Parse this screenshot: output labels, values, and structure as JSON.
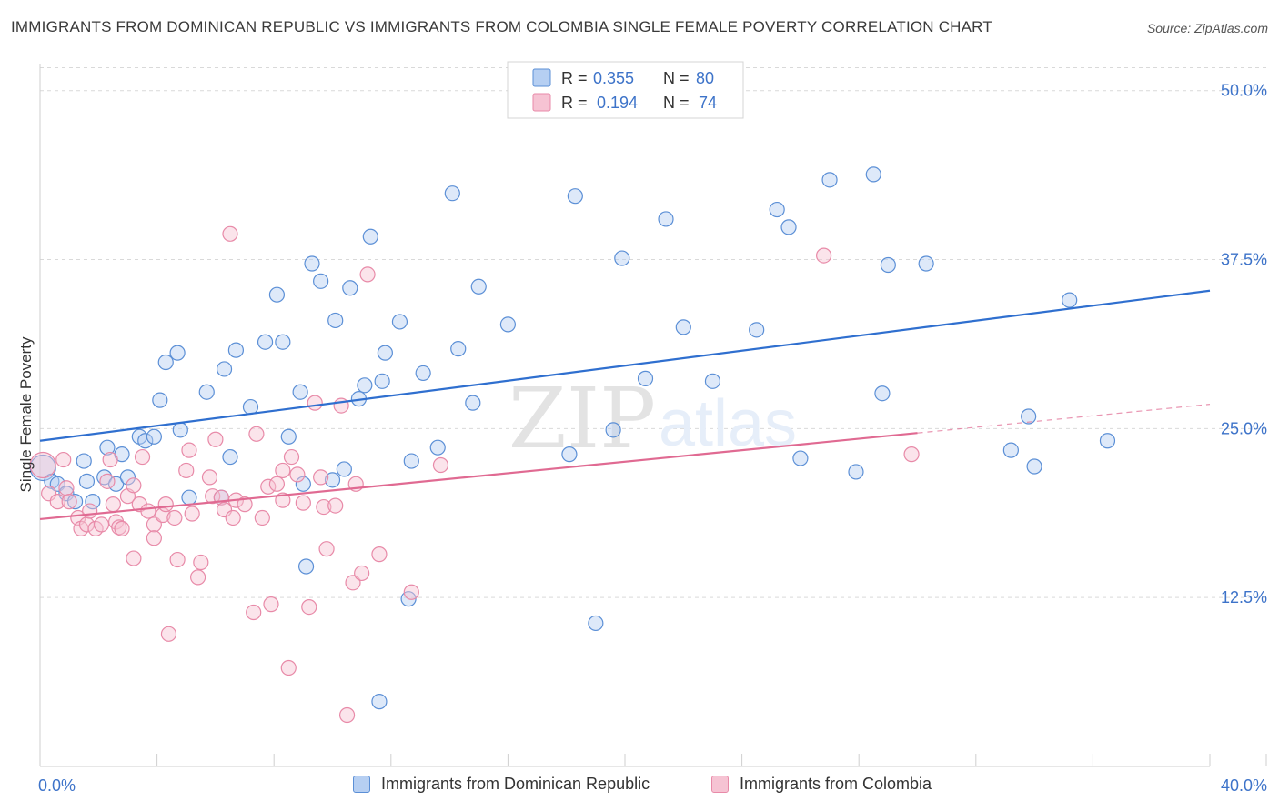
{
  "title": "IMMIGRANTS FROM DOMINICAN REPUBLIC VS IMMIGRANTS FROM COLOMBIA SINGLE FEMALE POVERTY CORRELATION CHART",
  "source": "Source: ZipAtlas.com",
  "watermark": {
    "zip": "ZIP",
    "atlas": "atlas"
  },
  "colors": {
    "blue": "#5b8fd6",
    "blue_fill": "#b6cff2",
    "blue_line": "#2f6fcf",
    "pink": "#e88aa8",
    "pink_fill": "#f6c3d3",
    "pink_line": "#e06a92",
    "axis_label": "#3d73c9",
    "grid": "#d9d9d9"
  },
  "legend_top": {
    "rows": [
      {
        "r_label": "R = ",
        "r_value": "0.355",
        "n_label": "N = ",
        "n_value": "80"
      },
      {
        "r_label": "R = ",
        "r_value": "0.194",
        "n_label": "N = ",
        "n_value": "74"
      }
    ]
  },
  "legend_bottom": {
    "blue_label": "Immigrants from Dominican Republic",
    "pink_label": "Immigrants from Colombia"
  },
  "chart_data": {
    "type": "scatter",
    "title": "IMMIGRANTS FROM DOMINICAN REPUBLIC VS IMMIGRANTS FROM COLOMBIA SINGLE FEMALE POVERTY CORRELATION CHART",
    "xlabel": "",
    "ylabel": "Single Female Poverty",
    "xlim": [
      0,
      40
    ],
    "ylim": [
      0,
      52
    ],
    "x_tick_labels": [
      "0.0%",
      "40.0%"
    ],
    "y_ticks": [
      12.5,
      25.0,
      37.5,
      50.0
    ],
    "y_tick_labels": [
      "12.5%",
      "25.0%",
      "37.5%",
      "50.0%"
    ],
    "x_minor_ticks": [
      0,
      4,
      8,
      12,
      16,
      20,
      24,
      28,
      32,
      36,
      40
    ],
    "series": [
      {
        "name": "Immigrants from Dominican Republic",
        "color": "blue",
        "R": 0.355,
        "N": 80,
        "trend": {
          "x": [
            0,
            40
          ],
          "y": [
            24.1,
            35.2
          ],
          "dashed_from": null
        },
        "points": [
          [
            0.1,
            22.1
          ],
          [
            0.4,
            21.1
          ],
          [
            0.6,
            20.9
          ],
          [
            0.9,
            20.2
          ],
          [
            1.2,
            19.6
          ],
          [
            1.5,
            22.6
          ],
          [
            1.6,
            21.1
          ],
          [
            1.8,
            19.6
          ],
          [
            2.2,
            21.4
          ],
          [
            2.3,
            23.6
          ],
          [
            2.6,
            20.9
          ],
          [
            2.8,
            23.1
          ],
          [
            3.0,
            21.4
          ],
          [
            3.4,
            24.4
          ],
          [
            3.6,
            24.1
          ],
          [
            3.9,
            24.4
          ],
          [
            4.1,
            27.1
          ],
          [
            4.3,
            29.9
          ],
          [
            4.7,
            30.6
          ],
          [
            4.8,
            24.9
          ],
          [
            5.1,
            19.9
          ],
          [
            5.7,
            27.7
          ],
          [
            6.2,
            19.9
          ],
          [
            6.3,
            29.4
          ],
          [
            6.5,
            22.9
          ],
          [
            6.7,
            30.8
          ],
          [
            7.2,
            26.6
          ],
          [
            7.7,
            31.4
          ],
          [
            8.1,
            34.9
          ],
          [
            8.3,
            31.4
          ],
          [
            8.5,
            24.4
          ],
          [
            8.9,
            27.7
          ],
          [
            9.0,
            20.9
          ],
          [
            9.3,
            37.2
          ],
          [
            9.6,
            35.9
          ],
          [
            10.0,
            21.2
          ],
          [
            10.1,
            33.0
          ],
          [
            10.4,
            22.0
          ],
          [
            10.6,
            35.4
          ],
          [
            10.9,
            27.2
          ],
          [
            11.1,
            28.2
          ],
          [
            11.3,
            39.2
          ],
          [
            11.7,
            28.5
          ],
          [
            11.8,
            30.6
          ],
          [
            12.3,
            32.9
          ],
          [
            12.6,
            12.4
          ],
          [
            12.7,
            22.6
          ],
          [
            13.1,
            29.1
          ],
          [
            13.6,
            23.6
          ],
          [
            14.1,
            42.4
          ],
          [
            14.3,
            30.9
          ],
          [
            14.8,
            26.9
          ],
          [
            15.0,
            35.5
          ],
          [
            16.0,
            32.7
          ],
          [
            18.1,
            23.1
          ],
          [
            18.3,
            42.2
          ],
          [
            19.0,
            10.6
          ],
          [
            19.6,
            24.9
          ],
          [
            19.9,
            37.6
          ],
          [
            20.7,
            28.7
          ],
          [
            21.4,
            40.5
          ],
          [
            22.0,
            32.5
          ],
          [
            23.0,
            28.5
          ],
          [
            24.5,
            32.3
          ],
          [
            25.2,
            41.2
          ],
          [
            25.6,
            39.9
          ],
          [
            26.0,
            22.8
          ],
          [
            27.0,
            43.4
          ],
          [
            27.9,
            21.8
          ],
          [
            28.5,
            43.8
          ],
          [
            28.8,
            27.6
          ],
          [
            29.0,
            37.1
          ],
          [
            30.3,
            37.2
          ],
          [
            33.2,
            23.4
          ],
          [
            33.8,
            25.9
          ],
          [
            34.0,
            22.2
          ],
          [
            35.2,
            34.5
          ],
          [
            36.5,
            24.1
          ],
          [
            11.6,
            4.8
          ],
          [
            9.1,
            14.8
          ]
        ]
      },
      {
        "name": "Immigrants from Colombia",
        "color": "pink",
        "R": 0.194,
        "N": 74,
        "trend": {
          "x": [
            0,
            40
          ],
          "y": [
            18.3,
            26.8
          ],
          "dashed_from": 30.0
        },
        "points": [
          [
            0.1,
            22.3
          ],
          [
            0.3,
            20.2
          ],
          [
            0.6,
            19.6
          ],
          [
            0.8,
            22.7
          ],
          [
            0.9,
            20.6
          ],
          [
            1.0,
            19.6
          ],
          [
            1.3,
            18.4
          ],
          [
            1.4,
            17.6
          ],
          [
            1.6,
            17.9
          ],
          [
            1.7,
            18.9
          ],
          [
            1.9,
            17.6
          ],
          [
            2.1,
            17.9
          ],
          [
            2.3,
            21.1
          ],
          [
            2.4,
            22.7
          ],
          [
            2.5,
            19.4
          ],
          [
            2.6,
            18.1
          ],
          [
            2.7,
            17.7
          ],
          [
            2.8,
            17.6
          ],
          [
            3.0,
            20.0
          ],
          [
            3.2,
            20.8
          ],
          [
            3.2,
            15.4
          ],
          [
            3.4,
            19.4
          ],
          [
            3.5,
            22.9
          ],
          [
            3.7,
            18.9
          ],
          [
            3.9,
            17.9
          ],
          [
            3.9,
            16.9
          ],
          [
            4.2,
            18.6
          ],
          [
            4.3,
            19.4
          ],
          [
            4.4,
            9.8
          ],
          [
            4.6,
            18.4
          ],
          [
            4.7,
            15.3
          ],
          [
            5.0,
            21.9
          ],
          [
            5.1,
            23.4
          ],
          [
            5.2,
            18.7
          ],
          [
            5.4,
            14.0
          ],
          [
            5.5,
            15.1
          ],
          [
            5.8,
            21.4
          ],
          [
            5.9,
            20.0
          ],
          [
            6.0,
            24.2
          ],
          [
            6.2,
            19.9
          ],
          [
            6.3,
            19.0
          ],
          [
            6.5,
            39.4
          ],
          [
            6.6,
            18.4
          ],
          [
            6.7,
            19.7
          ],
          [
            7.0,
            19.4
          ],
          [
            7.3,
            11.4
          ],
          [
            7.4,
            24.6
          ],
          [
            7.6,
            18.4
          ],
          [
            7.8,
            20.7
          ],
          [
            7.9,
            12.0
          ],
          [
            8.1,
            20.9
          ],
          [
            8.3,
            19.7
          ],
          [
            8.5,
            7.3
          ],
          [
            8.6,
            22.9
          ],
          [
            8.8,
            21.6
          ],
          [
            9.0,
            19.5
          ],
          [
            9.2,
            11.8
          ],
          [
            9.4,
            26.9
          ],
          [
            9.6,
            21.4
          ],
          [
            9.7,
            19.2
          ],
          [
            9.8,
            16.1
          ],
          [
            10.1,
            19.3
          ],
          [
            10.3,
            26.7
          ],
          [
            10.5,
            3.8
          ],
          [
            10.7,
            13.6
          ],
          [
            10.8,
            20.9
          ],
          [
            11.0,
            14.3
          ],
          [
            11.2,
            36.4
          ],
          [
            11.6,
            15.7
          ],
          [
            12.7,
            12.9
          ],
          [
            13.7,
            22.3
          ],
          [
            26.8,
            37.8
          ],
          [
            29.8,
            23.1
          ],
          [
            8.3,
            21.9
          ]
        ]
      }
    ]
  }
}
